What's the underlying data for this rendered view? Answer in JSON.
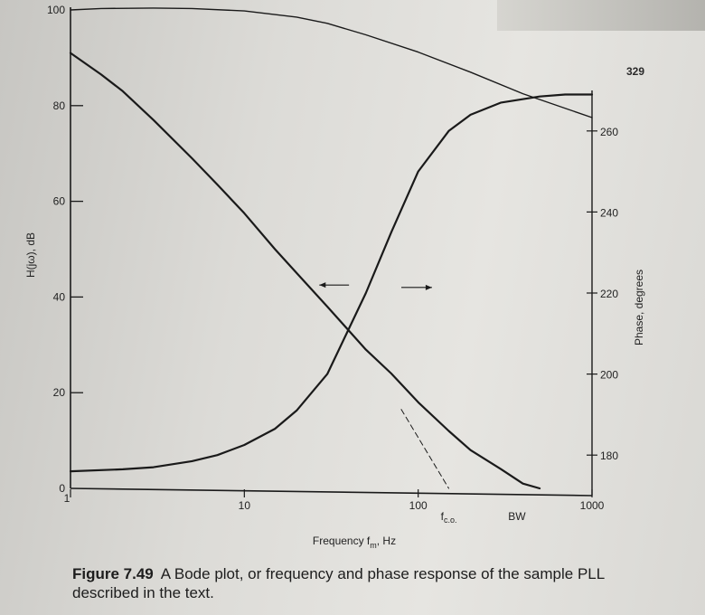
{
  "page": {
    "page_number": "329"
  },
  "caption": {
    "label": "Figure 7.49",
    "text": "A Bode plot, or frequency and phase response of the sample PLL described in the text."
  },
  "chart_data": {
    "type": "line",
    "title": "",
    "xlabel": "Frequency f",
    "xlabel_sub": "m",
    "xlabel_unit": ", Hz",
    "ylabel": "H(jω), dB",
    "y2label": "Phase, degrees",
    "xscale": "log",
    "xlim": [
      1,
      1000
    ],
    "ylim": [
      0,
      100
    ],
    "y2lim": [
      170,
      270
    ],
    "x_ticks": [
      {
        "value": 1,
        "label": "1"
      },
      {
        "value": 10,
        "label": "10"
      },
      {
        "value": 100,
        "label": "100"
      },
      {
        "value": 1000,
        "label": "1000"
      }
    ],
    "y_ticks": [
      {
        "value": 0,
        "label": "0"
      },
      {
        "value": 20,
        "label": "20"
      },
      {
        "value": 40,
        "label": "40"
      },
      {
        "value": 60,
        "label": "60"
      },
      {
        "value": 80,
        "label": "80"
      },
      {
        "value": 100,
        "label": "100"
      }
    ],
    "y2_ticks": [
      {
        "value": 180,
        "label": "180"
      },
      {
        "value": 200,
        "label": "200"
      },
      {
        "value": 220,
        "label": "220"
      },
      {
        "value": 240,
        "label": "240"
      },
      {
        "value": 260,
        "label": "260"
      }
    ],
    "annotations": [
      {
        "text": "f",
        "sub": "c.o.",
        "x": 150
      },
      {
        "text": "BW",
        "x": 370
      }
    ],
    "series": [
      {
        "axis": "left",
        "x": [
          1,
          1.5,
          2,
          3,
          5,
          7,
          10,
          15,
          20,
          30,
          50,
          70,
          100,
          150,
          200,
          300,
          400,
          500
        ],
        "y": [
          91,
          86.5,
          83,
          77,
          69,
          63.5,
          57.5,
          50,
          45,
          38,
          29,
          24,
          18,
          12,
          8,
          4,
          1,
          0
        ]
      },
      {
        "axis": "right",
        "x": [
          1,
          2,
          3,
          5,
          7,
          10,
          15,
          20,
          30,
          50,
          70,
          100,
          150,
          200,
          300,
          500,
          700,
          1000
        ],
        "y": [
          176,
          176.5,
          177,
          178.5,
          180,
          182.5,
          186.5,
          191,
          200,
          220,
          235,
          250,
          260,
          264,
          267,
          268.5,
          269,
          269
        ]
      },
      {
        "axis": "left",
        "style": "dashed",
        "x": [
          80,
          150
        ],
        "y": [
          16.5,
          0
        ]
      },
      {
        "axis": "left",
        "style": "upper-curve",
        "x": [
          1,
          1.5,
          3,
          5,
          10,
          20,
          30,
          50,
          100,
          200,
          400,
          1000
        ],
        "y": [
          100,
          100.3,
          100.4,
          100.3,
          99.8,
          98.5,
          97.2,
          94.8,
          91.2,
          87,
          82.5,
          77.5
        ]
      }
    ],
    "arrows": [
      {
        "direction": "left",
        "axis": "left",
        "x_from": 40,
        "x_to": 27,
        "y": 42.5
      },
      {
        "direction": "right",
        "axis": "left",
        "x_from": 80,
        "x_to": 120,
        "y": 42
      }
    ]
  }
}
